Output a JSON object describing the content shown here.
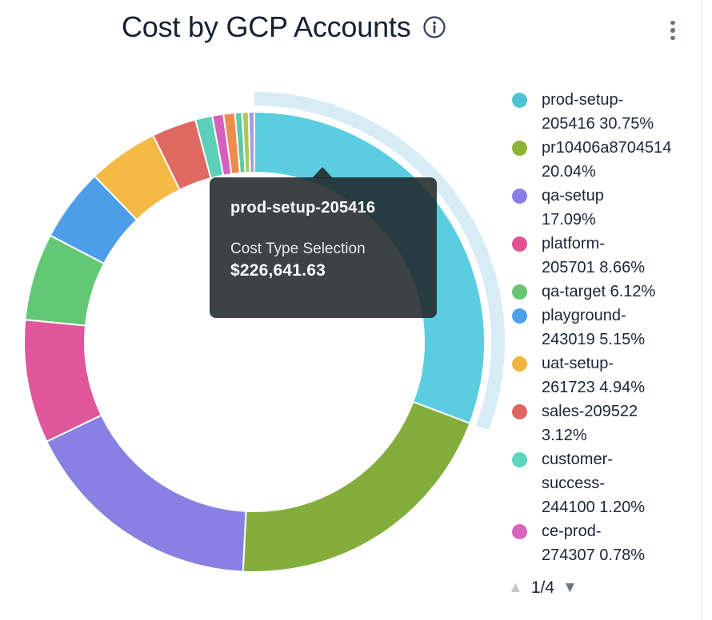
{
  "header": {
    "title": "Cost by GCP Accounts"
  },
  "tooltip": {
    "title": "prod-setup-205416",
    "label": "Cost Type Selection",
    "value": "$226,641.63"
  },
  "legend": {
    "items": [
      {
        "color": "#4FC4D0",
        "lines": [
          "prod-setup-",
          "205416 30.75%"
        ]
      },
      {
        "color": "#8CB236",
        "lines": [
          "pr10406a8704514",
          "20.04%"
        ]
      },
      {
        "color": "#8B7CE8",
        "lines": [
          "qa-setup",
          "17.09%"
        ]
      },
      {
        "color": "#E0518D",
        "lines": [
          "platform-",
          "205701 8.66%"
        ]
      },
      {
        "color": "#66C673",
        "lines": [
          "qa-target 6.12%"
        ]
      },
      {
        "color": "#4D9FE8",
        "lines": [
          "playground-",
          "243019 5.15%"
        ]
      },
      {
        "color": "#F2B33E",
        "lines": [
          "uat-setup-",
          "261723 4.94%"
        ]
      },
      {
        "color": "#E06560",
        "lines": [
          "sales-209522",
          "3.12%"
        ]
      },
      {
        "color": "#5BD6C0",
        "lines": [
          "customer-",
          "success-",
          "244100 1.20%"
        ]
      },
      {
        "color": "#DB64BC",
        "lines": [
          "ce-prod-",
          "274307 0.78%"
        ]
      }
    ],
    "pagination": {
      "label": "1/4",
      "up_symbol": "▲",
      "down_symbol": "▼",
      "up_color": "#C5C8CD",
      "down_color": "#6E7780"
    }
  },
  "chart_data": {
    "type": "pie",
    "donut": true,
    "title": "Cost by GCP Accounts",
    "legend_position": "right",
    "start_angle_deg": 0,
    "direction": "clockwise",
    "highlight": {
      "slice": "prod-setup-205416",
      "halo_color": "#D7ECF5",
      "tooltip_metric": "Cost Type Selection",
      "tooltip_value": "$226,641.63"
    },
    "slices": [
      {
        "label": "prod-setup-205416",
        "pct": 30.75,
        "color": "#5ACDE1"
      },
      {
        "label": "pr10406a8704514",
        "pct": 20.04,
        "color": "#84AE3B"
      },
      {
        "label": "qa-setup",
        "pct": 17.09,
        "color": "#8880E2"
      },
      {
        "label": "platform-205701",
        "pct": 8.66,
        "color": "#E0569B"
      },
      {
        "label": "qa-target",
        "pct": 6.12,
        "color": "#63C873"
      },
      {
        "label": "playground-243019",
        "pct": 5.15,
        "color": "#4D9EE8"
      },
      {
        "label": "uat-setup-261723",
        "pct": 4.94,
        "color": "#F4BA45"
      },
      {
        "label": "sales-209522",
        "pct": 3.12,
        "color": "#DF6961"
      },
      {
        "label": "customer-success-244100",
        "pct": 1.2,
        "color": "#5CCFBB"
      },
      {
        "label": "ce-prod-274307",
        "pct": 0.78,
        "color": "#D75FBE"
      },
      {
        "label": "",
        "pct": 0.8,
        "color": "#EE8C50"
      },
      {
        "label": "",
        "pct": 0.5,
        "color": "#5FC9A4"
      },
      {
        "label": "",
        "pct": 0.45,
        "color": "#A8C95D"
      },
      {
        "label": "",
        "pct": 0.4,
        "color": "#A79AE3"
      }
    ]
  },
  "colors": {
    "title_text": "#16202F",
    "legend_text": "#1D2636",
    "tooltip_bg": "rgba(32,38,40,0.87)",
    "card_border": "#E4E7EA"
  }
}
